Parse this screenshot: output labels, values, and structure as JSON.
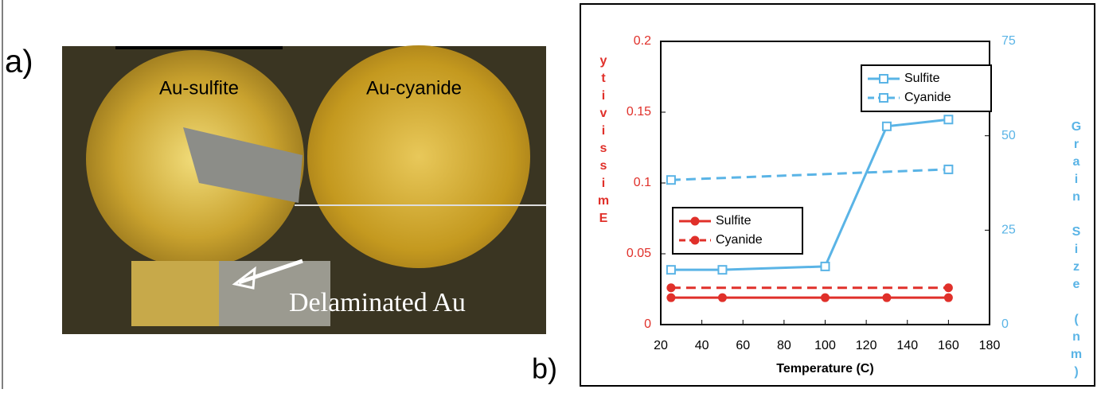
{
  "figure": {
    "panel_a_label": "a)",
    "panel_b_label": "b)",
    "photo_labels": [
      "Au-sulfite",
      "Au-cyanide",
      "Delaminated Au"
    ]
  },
  "chart_data": {
    "type": "line",
    "x_label": "Temperature (C)",
    "y_label": "Emissivity",
    "y2_label": "Grain Size (nm)",
    "xlim": [
      20,
      180
    ],
    "xticks": [
      20,
      40,
      60,
      80,
      100,
      120,
      140,
      160,
      180
    ],
    "ylim": [
      0,
      0.2
    ],
    "yticks": [
      0,
      0.05,
      0.1,
      0.15,
      0.2
    ],
    "y2lim": [
      0,
      75
    ],
    "y2ticks": [
      0,
      25,
      50,
      75
    ],
    "series": [
      {
        "name": "Sulfite",
        "color": "#e0302a",
        "dash": false,
        "marker": "circle",
        "x": [
          25,
          50,
          100,
          130,
          160
        ],
        "values": [
          0.019,
          0.019,
          0.019,
          0.019,
          0.019
        ]
      },
      {
        "name": "Cyanide",
        "color": "#e0302a",
        "dash": true,
        "marker": "circle",
        "x": [
          25,
          160
        ],
        "values": [
          0.026,
          0.026
        ]
      },
      {
        "name": "Sulfite",
        "color": "#5ab4e6",
        "dash": false,
        "marker": "square",
        "axis": "y2",
        "x": [
          25,
          50,
          100,
          130,
          160
        ],
        "values": [
          14.5,
          14.5,
          15.4,
          52.5,
          54.3
        ]
      },
      {
        "name": "Cyanide",
        "color": "#5ab4e6",
        "dash": true,
        "marker": "square",
        "axis": "y2",
        "x": [
          25,
          160
        ],
        "values": [
          38.3,
          41.1
        ]
      }
    ]
  }
}
